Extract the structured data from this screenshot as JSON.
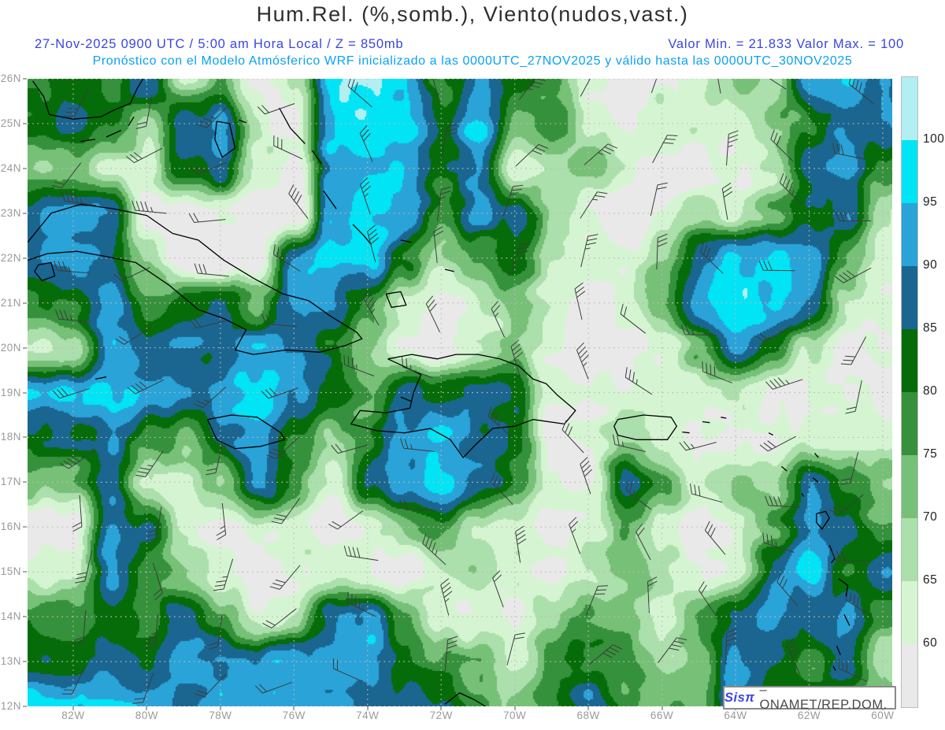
{
  "title": "Hum.Rel. (%,somb.), Viento(nudos,vast.)",
  "subtitle": {
    "line1_left": "27-Nov-2025  0900 UTC / 5:00 am Hora Local / Z = 850mb",
    "line1_right": "Valor Min. = 21.833  Valor Max. = 100",
    "line2": "Pronóstico con el Modelo Atmósferico WRF inicializado a las 0000UTC_27NOV2025 y válido hasta las  0000UTC_30NOV2025"
  },
  "colors": {
    "subtitle_blue": "#3a45e0",
    "subtitle_cyan": "#0aa2f2",
    "axis_label": "#9a9a9a",
    "grid_dots": "#c6b8b8",
    "coastline": "#000000",
    "wind_barb": "#3c3c3c"
  },
  "axes": {
    "lat_labels": [
      "26N",
      "25N",
      "24N",
      "23N",
      "22N",
      "21N",
      "20N",
      "19N",
      "18N",
      "17N",
      "16N",
      "15N",
      "14N",
      "13N",
      "12N"
    ],
    "lon_labels": [
      "82W",
      "80W",
      "78W",
      "76W",
      "74W",
      "72W",
      "70W",
      "68W",
      "66W",
      "64W",
      "62W",
      "60W"
    ]
  },
  "colorbar": {
    "tick_labels": [
      "100",
      "95",
      "90",
      "85",
      "80",
      "75",
      "70",
      "65",
      "60"
    ],
    "segment_colors_top_to_bottom": [
      "#b2eff3",
      "#00e4f5",
      "#2aa3d8",
      "#1a6690",
      "#056c09",
      "#35913b",
      "#77c077",
      "#abdfab",
      "#d5f5d2",
      "#e9e9e9"
    ]
  },
  "watermark": {
    "brand": "Sisπ",
    "org": "–  ONAMET/REP.DOM."
  },
  "chart_data": {
    "type": "heatmap",
    "title": "Hum.Rel. (%,somb.), Viento(nudos,vast.)",
    "variable": "relative humidity (%) shaded, wind (knots) barbs",
    "level": "850mb",
    "valid_time": "27-Nov-2025 0900 UTC / 5:00 am Hora Local",
    "value_min": 21.833,
    "value_max": 100,
    "lat_range": [
      26,
      12
    ],
    "lon_range": [
      82,
      60
    ],
    "level_thresholds": [
      60,
      65,
      70,
      75,
      80,
      85,
      90,
      95,
      100
    ],
    "palette_low_to_high": [
      "#e9e9e9",
      "#d5f5d2",
      "#abdfab",
      "#77c077",
      "#35913b",
      "#056c09",
      "#1a6690",
      "#2aa3d8",
      "#00e4f5",
      "#b2eff3"
    ],
    "grid_lat_26N_to_12N_lon_82W_to_60W": [
      [
        82,
        77,
        90,
        65,
        75,
        58,
        63,
        95,
        97,
        95,
        80,
        92,
        85,
        75,
        62,
        58,
        63,
        62,
        72,
        65,
        90,
        92,
        87
      ],
      [
        85,
        80,
        65,
        88,
        92,
        62,
        57,
        95,
        97,
        97,
        82,
        95,
        72,
        77,
        62,
        57,
        65,
        63,
        62,
        72,
        77,
        90,
        92
      ],
      [
        72,
        63,
        62,
        84,
        90,
        63,
        56,
        93,
        97,
        97,
        80,
        90,
        58,
        65,
        72,
        63,
        57,
        57,
        62,
        65,
        87,
        92,
        77
      ],
      [
        90,
        86,
        57,
        56,
        62,
        55,
        55,
        95,
        97,
        95,
        77,
        90,
        85,
        72,
        62,
        56,
        63,
        70,
        63,
        77,
        87,
        90,
        65
      ],
      [
        88,
        84,
        72,
        56,
        55,
        55,
        90,
        97,
        95,
        80,
        65,
        72,
        82,
        63,
        62,
        57,
        70,
        90,
        97,
        95,
        92,
        77,
        63
      ],
      [
        80,
        90,
        75,
        82,
        88,
        75,
        92,
        90,
        77,
        63,
        57,
        65,
        72,
        63,
        57,
        62,
        72,
        95,
        97,
        95,
        87,
        65,
        63
      ],
      [
        65,
        92,
        86,
        90,
        83,
        95,
        90,
        82,
        72,
        62,
        56,
        63,
        70,
        63,
        57,
        56,
        62,
        75,
        92,
        80,
        65,
        57,
        62
      ],
      [
        95,
        97,
        95,
        92,
        95,
        97,
        92,
        82,
        75,
        88,
        86,
        90,
        83,
        63,
        62,
        57,
        62,
        63,
        65,
        57,
        62,
        63,
        57
      ],
      [
        84,
        90,
        77,
        75,
        90,
        92,
        80,
        72,
        77,
        90,
        95,
        87,
        83,
        57,
        62,
        70,
        63,
        62,
        57,
        56,
        62,
        63,
        65
      ],
      [
        75,
        90,
        65,
        63,
        72,
        90,
        77,
        63,
        88,
        92,
        95,
        90,
        82,
        63,
        57,
        88,
        75,
        63,
        70,
        65,
        90,
        77,
        72
      ],
      [
        57,
        92,
        88,
        63,
        57,
        62,
        63,
        57,
        63,
        72,
        77,
        65,
        63,
        57,
        62,
        72,
        63,
        57,
        62,
        75,
        90,
        88,
        77
      ],
      [
        63,
        90,
        77,
        72,
        63,
        57,
        62,
        63,
        62,
        57,
        63,
        70,
        62,
        57,
        63,
        72,
        70,
        63,
        65,
        88,
        95,
        80,
        90
      ],
      [
        80,
        84,
        77,
        88,
        75,
        63,
        65,
        88,
        92,
        77,
        63,
        62,
        57,
        70,
        75,
        72,
        63,
        77,
        86,
        92,
        83,
        90,
        75
      ],
      [
        85,
        90,
        87,
        95,
        92,
        95,
        97,
        92,
        95,
        83,
        75,
        72,
        63,
        77,
        82,
        75,
        65,
        72,
        90,
        84,
        77,
        88,
        65
      ],
      [
        95,
        97,
        95,
        88,
        97,
        95,
        97,
        95,
        92,
        90,
        84,
        77,
        72,
        82,
        90,
        77,
        72,
        75,
        92,
        80,
        88,
        77,
        72
      ]
    ],
    "legend_position": "right",
    "grid_lines": "dotted, 1° latitude / 2° longitude"
  }
}
